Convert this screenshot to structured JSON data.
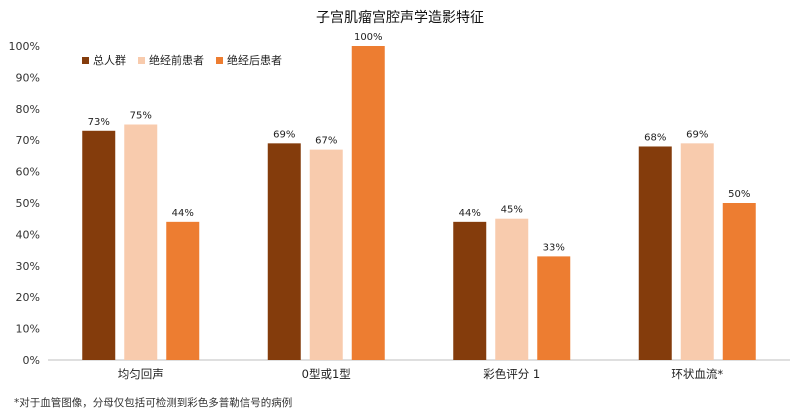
{
  "chart_data": {
    "type": "bar",
    "title": "子宫肌瘤宫腔声学造影特征",
    "categories": [
      "均匀回声",
      "0型或1型",
      "彩色评分 1",
      "环状血流*"
    ],
    "series": [
      {
        "name": "总人群",
        "color": "#843C0C",
        "values": [
          73,
          69,
          44,
          68
        ]
      },
      {
        "name": "绝经前患者",
        "color": "#F8CBAD",
        "values": [
          75,
          67,
          45,
          69
        ]
      },
      {
        "name": "绝经后患者",
        "color": "#ED7D31",
        "values": [
          44,
          100,
          33,
          50
        ]
      }
    ],
    "value_labels": [
      [
        "73%",
        "75%",
        "44%"
      ],
      [
        "69%",
        "67%",
        "100%"
      ],
      [
        "44%",
        "45%",
        "33%"
      ],
      [
        "68%",
        "69%",
        "50%"
      ]
    ],
    "y_ticks": [
      "0%",
      "10%",
      "20%",
      "30%",
      "40%",
      "50%",
      "60%",
      "70%",
      "80%",
      "90%",
      "100%"
    ],
    "ylim": [
      0,
      100
    ],
    "xlabel": "",
    "ylabel": "",
    "grid": false,
    "legend_position": "top-left"
  },
  "footnote": "*对于血管图像，分母仅包括可检测到彩色多普勒信号的病例"
}
